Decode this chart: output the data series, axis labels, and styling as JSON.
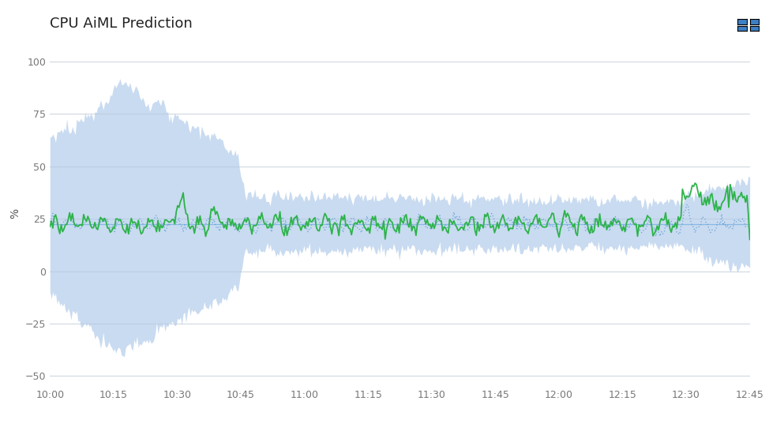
{
  "title": "CPU AiML Prediction",
  "ylabel": "%",
  "ylim": [
    -55,
    110
  ],
  "yticks": [
    -50,
    -25,
    0,
    25,
    50,
    75,
    100
  ],
  "background_color": "#ffffff",
  "plot_bg_color": "#ffffff",
  "grid_color": "#d0d8e0",
  "band_color": "#adc8e8",
  "band_alpha": 0.65,
  "green_line_color": "#2db34a",
  "blue_dot_color": "#5b9bd5",
  "mean_line_color": "#7ab0e0",
  "title_fontsize": 13,
  "n_points": 500,
  "time_start_minutes": 0,
  "time_end_minutes": 165,
  "xtick_labels": [
    "10:00",
    "10:15",
    "10:30",
    "10:45",
    "11:00",
    "11:15",
    "11:30",
    "11:45",
    "12:00",
    "12:15",
    "12:30",
    "12:45"
  ],
  "xtick_positions": [
    0,
    15,
    30,
    45,
    60,
    75,
    90,
    105,
    120,
    135,
    150,
    165
  ]
}
